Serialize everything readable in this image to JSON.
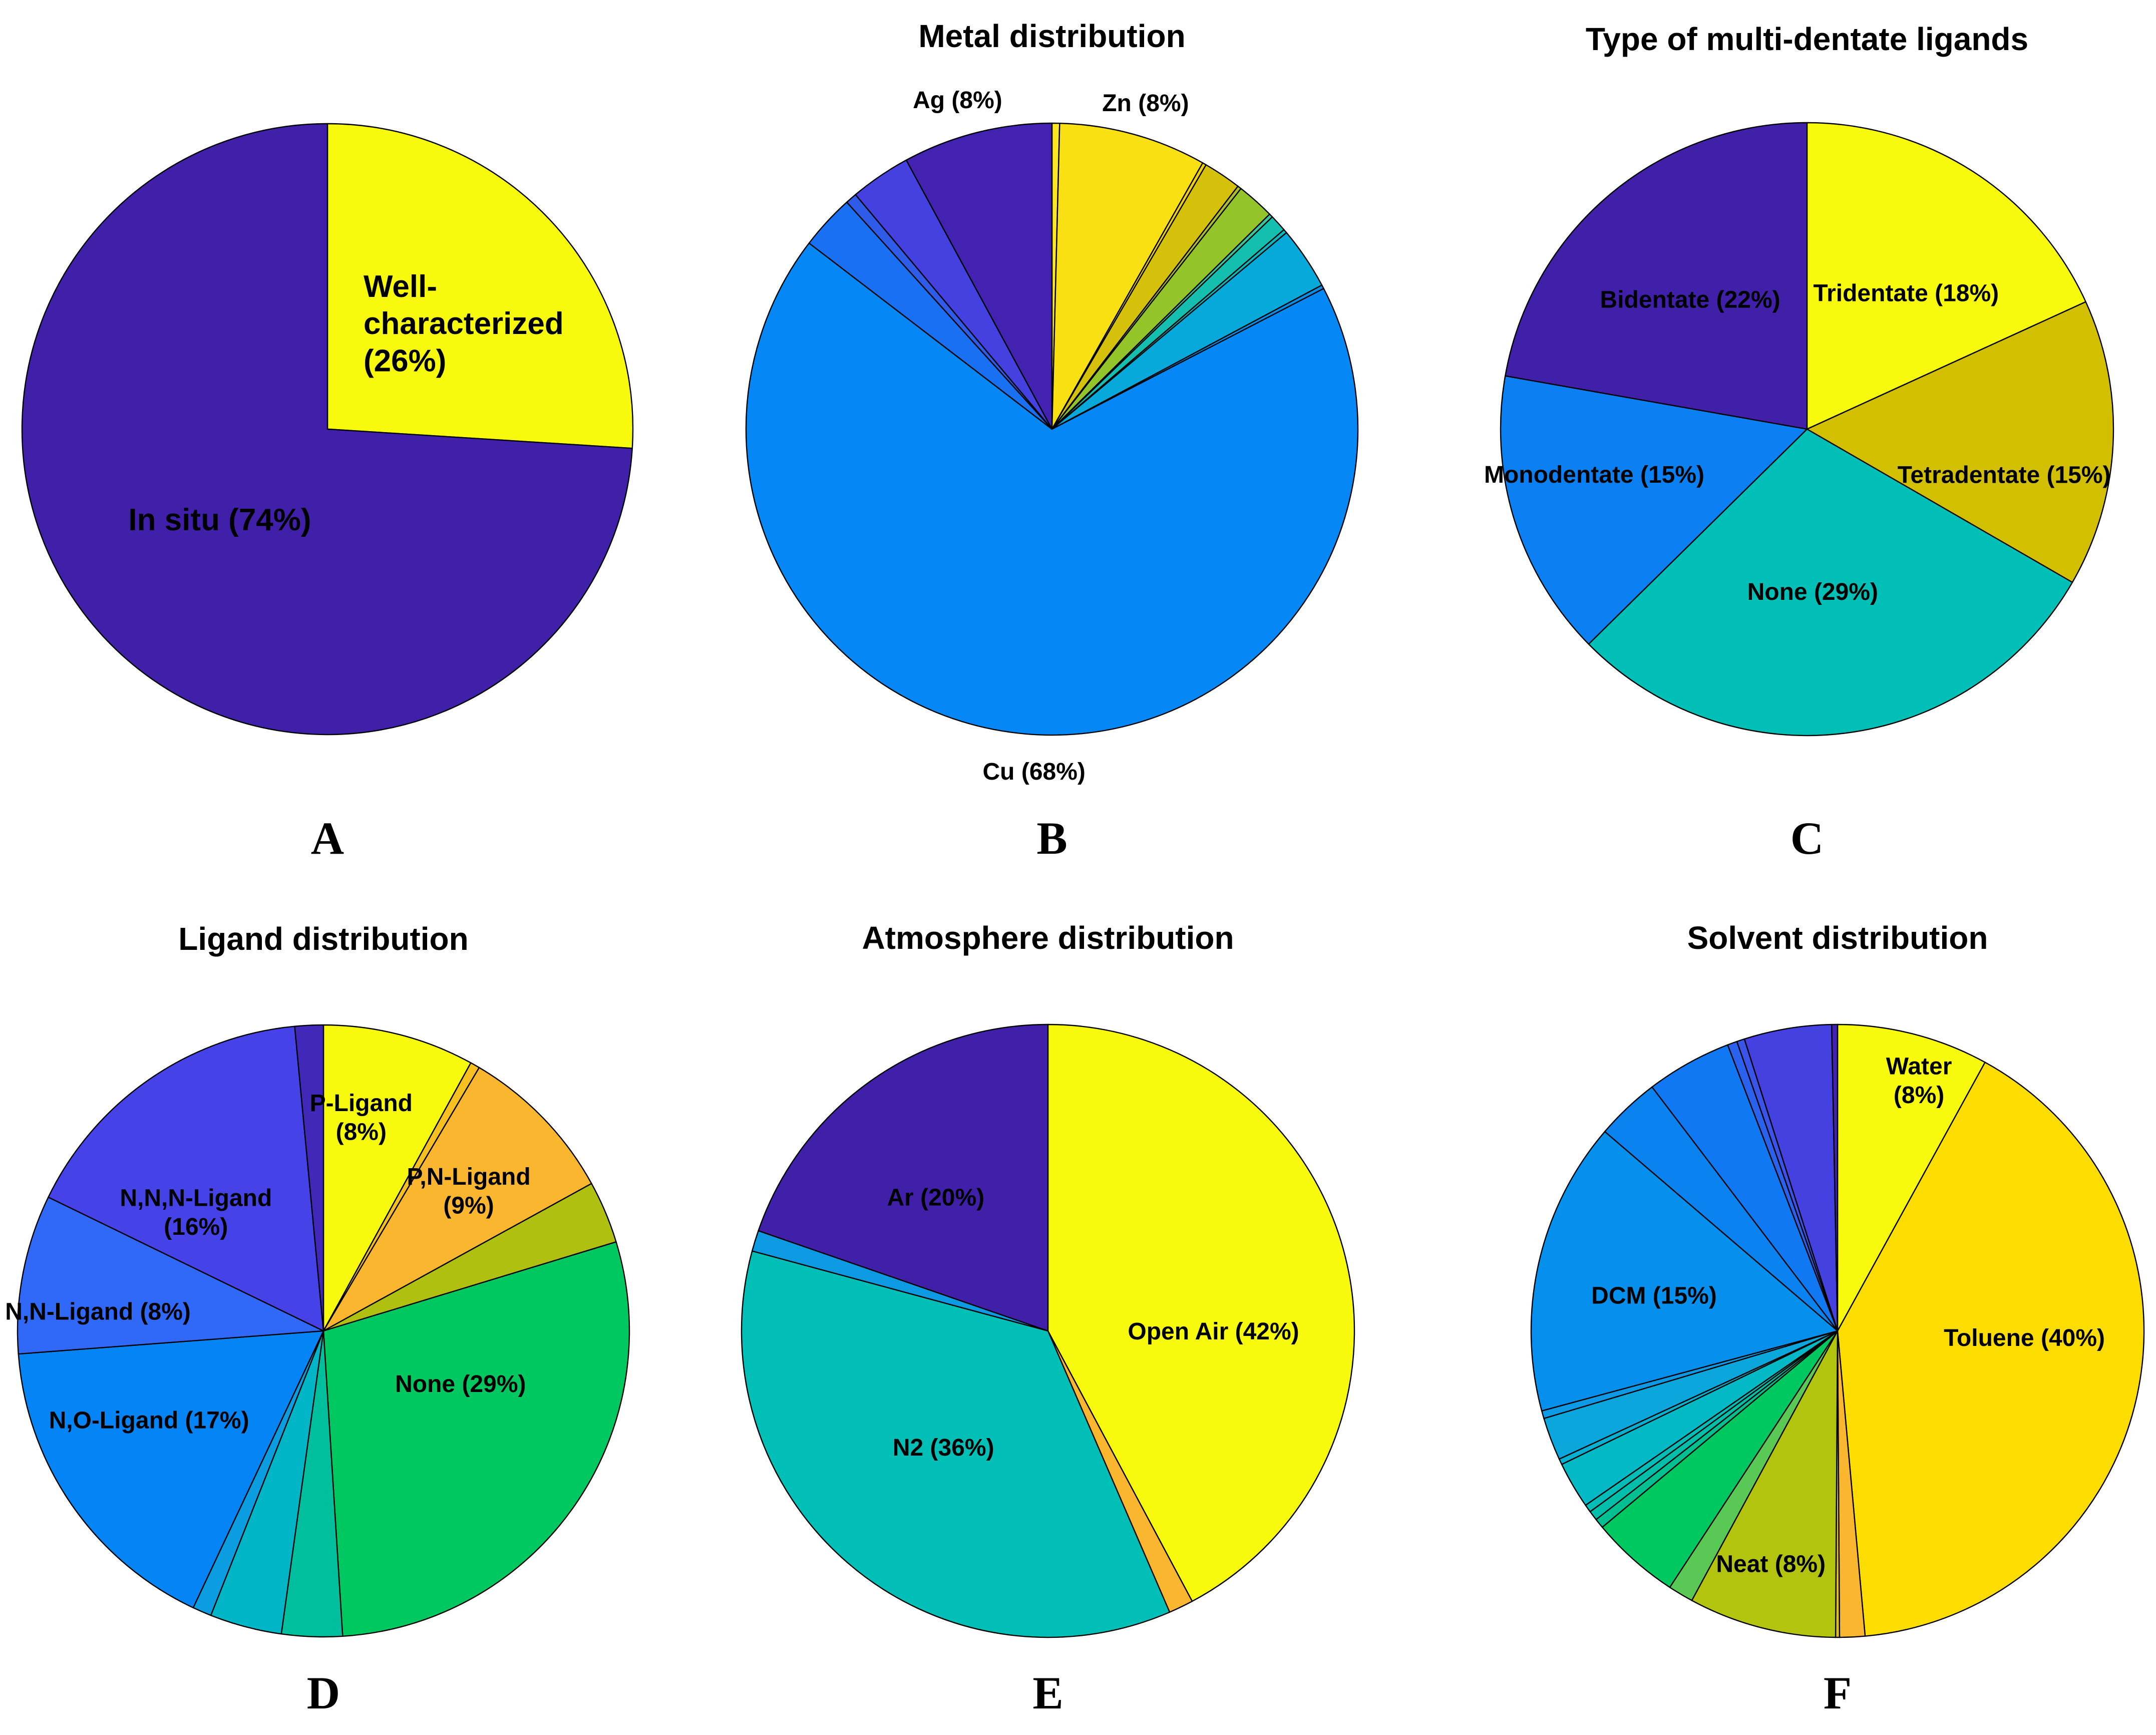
{
  "chart_data": [
    {
      "type": "pie",
      "panel_letter": "A",
      "title": "",
      "start_angle": 0,
      "slices": [
        {
          "value": 26,
          "color": "#f8fa0d",
          "label": [
            "Well-",
            "characterized",
            "(26%)"
          ]
        },
        {
          "value": 74,
          "color": "#4020a8",
          "label": [
            "In situ (74%)"
          ]
        }
      ]
    },
    {
      "type": "pie",
      "panel_letter": "B",
      "title": "Metal distribution",
      "start_angle": 0,
      "slices": [
        {
          "value": 0.4,
          "color": "#fde725",
          "label": []
        },
        {
          "value": 7.8,
          "color": "#f9e012",
          "label": [
            "Zn (8%)"
          ]
        },
        {
          "value": 0.2,
          "color": "#f0d010",
          "label": []
        },
        {
          "value": 2.0,
          "color": "#d6c10a",
          "label": []
        },
        {
          "value": 0.2,
          "color": "#aebd2c",
          "label": []
        },
        {
          "value": 2.0,
          "color": "#93c52a",
          "label": []
        },
        {
          "value": 0.2,
          "color": "#39c5a0",
          "label": []
        },
        {
          "value": 0.9,
          "color": "#14bfb0",
          "label": []
        },
        {
          "value": 0.2,
          "color": "#0ab8c0",
          "label": []
        },
        {
          "value": 3.3,
          "color": "#06a9d9",
          "label": []
        },
        {
          "value": 0.2,
          "color": "#078ee8",
          "label": []
        },
        {
          "value": 68.0,
          "color": "#0588f5",
          "label": [
            "Cu (68%)"
          ]
        },
        {
          "value": 2.9,
          "color": "#1a70f2",
          "label": []
        },
        {
          "value": 0.6,
          "color": "#2e5be8",
          "label": []
        },
        {
          "value": 3.2,
          "color": "#4540e0",
          "label": []
        },
        {
          "value": 7.9,
          "color": "#4222b0",
          "label": [
            "Ag (8%)"
          ]
        }
      ]
    },
    {
      "type": "pie",
      "panel_letter": "C",
      "title": "Type of multi-dentate ligands",
      "start_angle": 0,
      "slices": [
        {
          "value": 18,
          "color": "#f8fa0d",
          "label": [
            "Tridentate (18%)"
          ]
        },
        {
          "value": 15,
          "color": "#d2c000",
          "label": [
            "Tetradentate (15%)"
          ]
        },
        {
          "value": 29,
          "color": "#00bfb6",
          "label": [
            "None (29%)"
          ]
        },
        {
          "value": 15,
          "color": "#0a80f2",
          "label": [
            "Monodentate (15%)"
          ]
        },
        {
          "value": 22,
          "color": "#4020a8",
          "label": [
            "Bidentate (22%)"
          ]
        }
      ]
    },
    {
      "type": "pie",
      "panel_letter": "D",
      "title": "Ligand distribution",
      "start_angle": 0,
      "slices": [
        {
          "value": 8.0,
          "color": "#f8fa0d",
          "label": [
            "P-Ligand",
            "(8%)"
          ]
        },
        {
          "value": 0.5,
          "color": "#f5c020",
          "label": []
        },
        {
          "value": 8.5,
          "color": "#fbb630",
          "label": [
            "P,N-Ligand",
            "(9%)"
          ]
        },
        {
          "value": 3.3,
          "color": "#b0c010",
          "label": []
        },
        {
          "value": 28.7,
          "color": "#00c860",
          "label": [
            "None (29%)"
          ]
        },
        {
          "value": 3.2,
          "color": "#00bf9c",
          "label": []
        },
        {
          "value": 3.8,
          "color": "#00b6c6",
          "label": []
        },
        {
          "value": 1.0,
          "color": "#0a9ee0",
          "label": []
        },
        {
          "value": 16.8,
          "color": "#0585f5",
          "label": [
            "N,O-Ligand (17%)"
          ]
        },
        {
          "value": 8.4,
          "color": "#3068f8",
          "label": [
            "N,N-Ligand (8%)"
          ]
        },
        {
          "value": 16.3,
          "color": "#4543e8",
          "label": [
            "N,N,N-Ligand",
            "(16%)"
          ]
        },
        {
          "value": 1.5,
          "color": "#4228b8",
          "label": []
        }
      ]
    },
    {
      "type": "pie",
      "panel_letter": "E",
      "title": "Atmosphere distribution",
      "start_angle": 0,
      "slices": [
        {
          "value": 42.2,
          "color": "#f8fa0d",
          "label": [
            "Open Air (42%)"
          ]
        },
        {
          "value": 1.3,
          "color": "#fbb630",
          "label": []
        },
        {
          "value": 35.7,
          "color": "#00bfb6",
          "label": [
            "N2 (36%)"
          ]
        },
        {
          "value": 1.1,
          "color": "#0c9be2",
          "label": []
        },
        {
          "value": 19.7,
          "color": "#4020a8",
          "label": [
            "Ar (20%)"
          ]
        }
      ]
    },
    {
      "type": "pie",
      "panel_letter": "F",
      "title": "Solvent distribution",
      "start_angle": 0,
      "slices": [
        {
          "value": 7.8,
          "color": "#f8fa0d",
          "label": [
            "Water",
            "(8%)"
          ]
        },
        {
          "value": 39.6,
          "color": "#fddc00",
          "label": [
            "Toluene (40%)"
          ]
        },
        {
          "value": 1.3,
          "color": "#fbb630",
          "label": []
        },
        {
          "value": 0.2,
          "color": "#e0c020",
          "label": []
        },
        {
          "value": 7.6,
          "color": "#b2c40e",
          "label": [
            "Neat (8%)"
          ]
        },
        {
          "value": 1.3,
          "color": "#5ac855",
          "label": []
        },
        {
          "value": 4.6,
          "color": "#00c860",
          "label": []
        },
        {
          "value": 0.5,
          "color": "#00bf90",
          "label": []
        },
        {
          "value": 0.5,
          "color": "#00bfaa",
          "label": []
        },
        {
          "value": 0.4,
          "color": "#00bdb8",
          "label": []
        },
        {
          "value": 2.4,
          "color": "#04b9c6",
          "label": []
        },
        {
          "value": 0.3,
          "color": "#06b0d0",
          "label": []
        },
        {
          "value": 2.2,
          "color": "#0aa6dc",
          "label": []
        },
        {
          "value": 0.4,
          "color": "#0c9ae6",
          "label": []
        },
        {
          "value": 15.1,
          "color": "#0590ee",
          "label": [
            "DCM (15%)"
          ]
        },
        {
          "value": 3.3,
          "color": "#0a82f0",
          "label": []
        },
        {
          "value": 4.4,
          "color": "#1078f2",
          "label": []
        },
        {
          "value": 0.5,
          "color": "#2a62ee",
          "label": []
        },
        {
          "value": 0.4,
          "color": "#3a54ea",
          "label": []
        },
        {
          "value": 4.5,
          "color": "#4540e0",
          "label": []
        },
        {
          "value": 0.3,
          "color": "#4222b0",
          "label": []
        }
      ]
    }
  ]
}
